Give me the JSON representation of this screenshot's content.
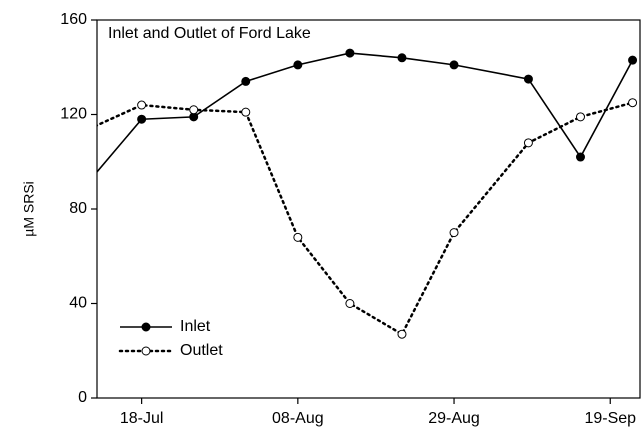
{
  "chart_data": {
    "type": "line",
    "title": "Inlet and Outlet of Ford Lake",
    "y_label": "µM SRSi",
    "x": [
      "07-11",
      "07-18",
      "07-25",
      "08-01",
      "08-08",
      "08-15",
      "08-22",
      "08-29",
      "09-08",
      "09-15",
      "09-22"
    ],
    "series": [
      {
        "name": "Inlet",
        "color": "#000000",
        "line_style": "solid",
        "marker": "filled",
        "values": [
          92,
          118,
          119,
          134,
          141,
          146,
          144,
          141,
          135,
          102,
          143
        ]
      },
      {
        "name": "Outlet",
        "color": "#000000",
        "line_style": "dotted",
        "marker": "open",
        "values": [
          114,
          124,
          122,
          121,
          68,
          40,
          27,
          70,
          108,
          119,
          125
        ]
      }
    ],
    "xlim": [
      "07-12",
      "09-23"
    ],
    "xticks": [
      {
        "value": "07-18",
        "label": "18-Jul"
      },
      {
        "value": "08-08",
        "label": "08-Aug"
      },
      {
        "value": "08-29",
        "label": "29-Aug"
      },
      {
        "value": "09-19",
        "label": "19-Sep"
      }
    ],
    "ylim": [
      0,
      160
    ],
    "yticks": [
      0,
      40,
      80,
      120,
      160
    ],
    "legend": "lower-left"
  }
}
